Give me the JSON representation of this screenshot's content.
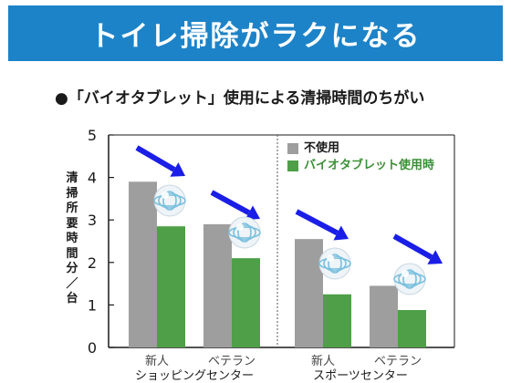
{
  "header": {
    "title": "トイレ掃除がラクになる"
  },
  "subtitle": "●「バイオタブレット」使用による清掃時間のちがい",
  "colors": {
    "banner": "#1d83c8",
    "gray": "#9e9e9e",
    "green": "#4e9f48",
    "arrow": "#1a1ee6"
  },
  "chart_data": {
    "type": "bar",
    "ylabel": "清掃所要時間　分／台",
    "ylim": [
      0,
      5
    ],
    "yticks": [
      "0",
      "1",
      "2",
      "3",
      "4",
      "5"
    ],
    "categories": [
      "新人",
      "ベテラン",
      "新人",
      "ベテラン"
    ],
    "groups": [
      {
        "label": "ショッピングセンター",
        "categories": [
          0,
          1
        ]
      },
      {
        "label": "スポーツセンター",
        "categories": [
          2,
          3
        ]
      }
    ],
    "series": [
      {
        "name": "不使用",
        "color": "#9e9e9e",
        "values": [
          3.9,
          2.9,
          2.55,
          1.45
        ]
      },
      {
        "name": "バイオタブレット使用時",
        "color": "#4e9f48",
        "values": [
          2.85,
          2.1,
          1.25,
          0.88
        ]
      }
    ],
    "grid": false,
    "legend": "top-right",
    "annotations": [
      "blue downward arrow and tablet ball graphic over each category"
    ]
  }
}
